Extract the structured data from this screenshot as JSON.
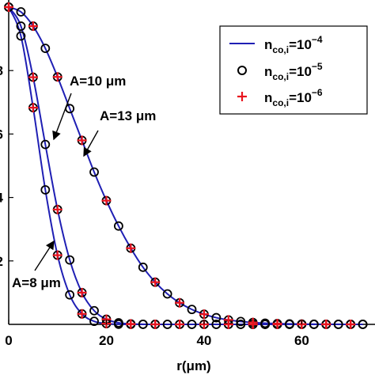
{
  "chart_data": {
    "type": "line",
    "title": "",
    "xlabel": "r(μm)",
    "ylabel": "",
    "xlim": [
      0,
      75
    ],
    "ylim": [
      0,
      1.0
    ],
    "x_ticks": [
      "0",
      "20",
      "40",
      "60"
    ],
    "y_ticks": [
      "2",
      "4",
      "6",
      "8"
    ],
    "grid": false,
    "legend_position": "top-right",
    "legend": [
      {
        "prefix": "n",
        "sub": "co,i",
        "mid": "=10",
        "sup": "−4",
        "marker": "line",
        "color": "#1f1fb4"
      },
      {
        "prefix": "n",
        "sub": "co,i",
        "mid": "=10",
        "sup": "−5",
        "marker": "circle",
        "color": "#000000"
      },
      {
        "prefix": "n",
        "sub": "co,i",
        "mid": "=10",
        "sup": "−6",
        "marker": "plus",
        "color": "#e8141e"
      }
    ],
    "series": [
      {
        "name": "A=8 μm",
        "x": [
          0,
          2.5,
          5,
          7.5,
          10,
          12.5,
          15,
          17.5,
          20,
          22.5,
          25,
          27.5,
          30,
          32.5,
          35,
          37.5,
          40,
          42.5,
          45,
          47.5,
          50,
          52.5,
          55,
          57.5,
          60,
          62.5,
          65,
          67.5,
          70,
          72.5
        ],
        "y": [
          1.0,
          0.909,
          0.683,
          0.424,
          0.218,
          0.093,
          0.033,
          0.0096,
          0.0023,
          0.0005,
          0.0001,
          0,
          0,
          0,
          0,
          0,
          0,
          0,
          0,
          0,
          0,
          0,
          0,
          0,
          0,
          0,
          0,
          0,
          0,
          0
        ]
      },
      {
        "name": "A=10 μm",
        "x": [
          0,
          2.5,
          5,
          7.5,
          10,
          12.5,
          15,
          17.5,
          20,
          22.5,
          25,
          27.5,
          30,
          32.5,
          35,
          37.5,
          40,
          42.5,
          45,
          47.5,
          50,
          52.5,
          55,
          57.5,
          60,
          62.5,
          65,
          67.5,
          70,
          72.5
        ],
        "y": [
          1.0,
          0.94,
          0.779,
          0.567,
          0.362,
          0.203,
          0.1,
          0.043,
          0.016,
          0.005,
          0.0015,
          0.0004,
          0.0001,
          0,
          0,
          0,
          0,
          0,
          0,
          0,
          0,
          0,
          0,
          0,
          0,
          0,
          0,
          0,
          0,
          0
        ]
      },
      {
        "name": "A=13 μm",
        "x": [
          0,
          2.5,
          5,
          7.5,
          10,
          12.5,
          15,
          17.5,
          20,
          22.5,
          25,
          27.5,
          30,
          32.5,
          35,
          37.5,
          40,
          42.5,
          45,
          47.5,
          50,
          52.5,
          55,
          57.5,
          60,
          62.5,
          65,
          67.5,
          70,
          72.5
        ],
        "y": [
          1.0,
          0.985,
          0.94,
          0.87,
          0.78,
          0.68,
          0.58,
          0.48,
          0.39,
          0.31,
          0.24,
          0.18,
          0.133,
          0.096,
          0.068,
          0.047,
          0.032,
          0.021,
          0.014,
          0.009,
          0.006,
          0.0038,
          0.0024,
          0.0015,
          0.0009,
          0.0005,
          0.0003,
          0.0002,
          0.0001,
          0.0001
        ]
      }
    ],
    "annotations": [
      {
        "text": "A=10 μm"
      },
      {
        "text": "A=13 μm"
      },
      {
        "text": "A=8 μm"
      }
    ]
  }
}
